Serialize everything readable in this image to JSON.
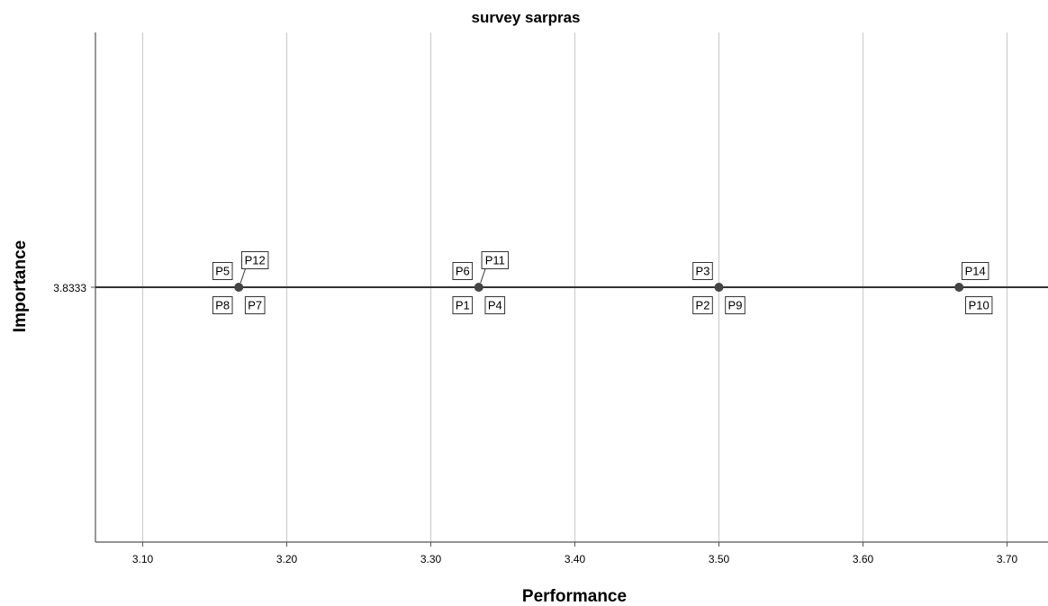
{
  "chart_data": {
    "type": "scatter",
    "title": "survey sarpras",
    "xlabel": "Performance",
    "ylabel": "Importance",
    "xlim": [
      3.067,
      3.73
    ],
    "x_ticks": [
      "3.10",
      "3.20",
      "3.30",
      "3.40",
      "3.50",
      "3.60",
      "3.70"
    ],
    "x_tick_values": [
      3.1,
      3.2,
      3.3,
      3.4,
      3.5,
      3.6,
      3.7
    ],
    "y_ticks": [
      "3.8333"
    ],
    "y_tick_values": [
      3.8333
    ],
    "reference_line_y": 3.8333,
    "grid": "vertical",
    "points": [
      {
        "x": 3.1667,
        "y": 3.8333,
        "labels": [
          "P5",
          "P12",
          "P8",
          "P7"
        ]
      },
      {
        "x": 3.3333,
        "y": 3.8333,
        "labels": [
          "P6",
          "P11",
          "P1",
          "P4"
        ]
      },
      {
        "x": 3.5,
        "y": 3.8333,
        "labels": [
          "P3",
          "P2",
          "P9"
        ]
      },
      {
        "x": 3.6667,
        "y": 3.8333,
        "labels": [
          "P14",
          "P10"
        ]
      }
    ],
    "colors": {
      "grid": "#c8c8c8",
      "axis": "#555555",
      "point": "#444444",
      "ref_line": "#333333"
    }
  }
}
